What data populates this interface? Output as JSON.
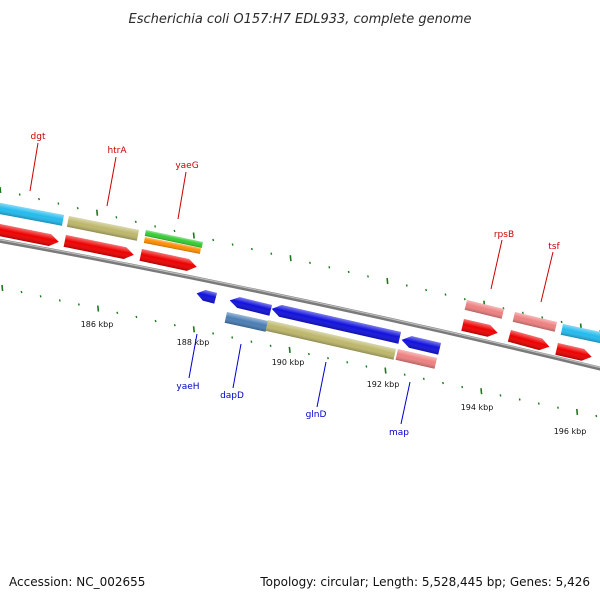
{
  "title": "Escherichia coli O157:H7 EDL933, complete genome",
  "footer": {
    "accession": "Accession: NC_002655",
    "topology": "Topology: circular; Length: 5,528,445 bp; Genes: 5,426"
  },
  "colors": {
    "backbone": "#7a7a7a",
    "tick_major": "#1a7a1a",
    "tick_minor": "#1a7a1a",
    "label_top": "#cc0000",
    "label_bottom": "#0000cc",
    "red": "#ee0000",
    "blue": "#1111dd",
    "cyan": "#22bbee",
    "khaki": "#bdb76b",
    "pink": "#ee8080",
    "green": "#33cc33",
    "orange": "#ff8c00",
    "steelblue": "#4a7eb5"
  },
  "scale_labels": [
    "186 kbp",
    "188 kbp",
    "190 kbp",
    "192 kbp",
    "194 kbp",
    "196 kbp"
  ],
  "top_labels": [
    "dgt",
    "htrA",
    "yaeG",
    "rpsB",
    "tsf"
  ],
  "bottom_labels": [
    "yaeH",
    "dapD",
    "glnD",
    "map"
  ]
}
